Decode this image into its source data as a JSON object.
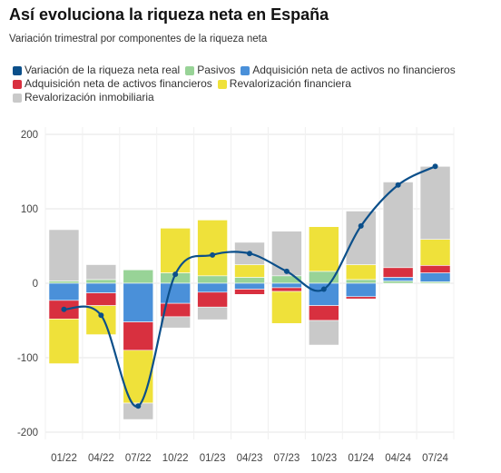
{
  "title": "Así evoluciona la riqueza neta en España",
  "subtitle": "Variación trimestral por componentes de la riqueza neta",
  "colors": {
    "line": "#0b4f8a",
    "pasivos": "#98d397",
    "adq_no_fin": "#4a90d9",
    "adq_fin": "#d8303f",
    "reval_fin": "#efe13a",
    "reval_inmo": "#c9c9c9",
    "grid": "#e6e6e6"
  },
  "chart_data": {
    "type": "bar",
    "stacked": true,
    "categories": [
      "01/22",
      "04/22",
      "07/22",
      "10/22",
      "01/23",
      "04/23",
      "07/23",
      "10/23",
      "01/24",
      "04/24",
      "07/24"
    ],
    "ylim": [
      -210,
      210
    ],
    "yticks": [
      200,
      100,
      0,
      -100,
      -200
    ],
    "grid": true,
    "legend_position": "top",
    "series": [
      {
        "key": "line",
        "name": "Variación de la riqueza neta real",
        "type": "line",
        "values": [
          -35,
          -43,
          -165,
          12,
          38,
          40,
          16,
          -8,
          77,
          132,
          157
        ]
      },
      {
        "key": "pasivos",
        "name": "Pasivos",
        "values": [
          3,
          5,
          18,
          14,
          10,
          8,
          10,
          16,
          5,
          3,
          2
        ]
      },
      {
        "key": "adq_no_fin",
        "name": "Adquisición neta de activos no financieros",
        "values": [
          -23,
          -13,
          -52,
          -27,
          -12,
          -8,
          -6,
          -30,
          -18,
          5,
          12
        ]
      },
      {
        "key": "adq_fin",
        "name": "Adquisición neta de activos financieros",
        "values": [
          -25,
          -17,
          -38,
          -18,
          -20,
          -7,
          -5,
          -20,
          -3,
          13,
          10
        ]
      },
      {
        "key": "reval_fin",
        "name": "Revalorización financiera",
        "values": [
          -60,
          -39,
          -71,
          60,
          75,
          17,
          -43,
          60,
          20,
          0,
          35
        ]
      },
      {
        "key": "reval_inmo",
        "name": "Revalorización inmobiliaria",
        "values": [
          69,
          20,
          -22,
          -15,
          -17,
          30,
          60,
          -33,
          72,
          115,
          98
        ]
      }
    ]
  }
}
